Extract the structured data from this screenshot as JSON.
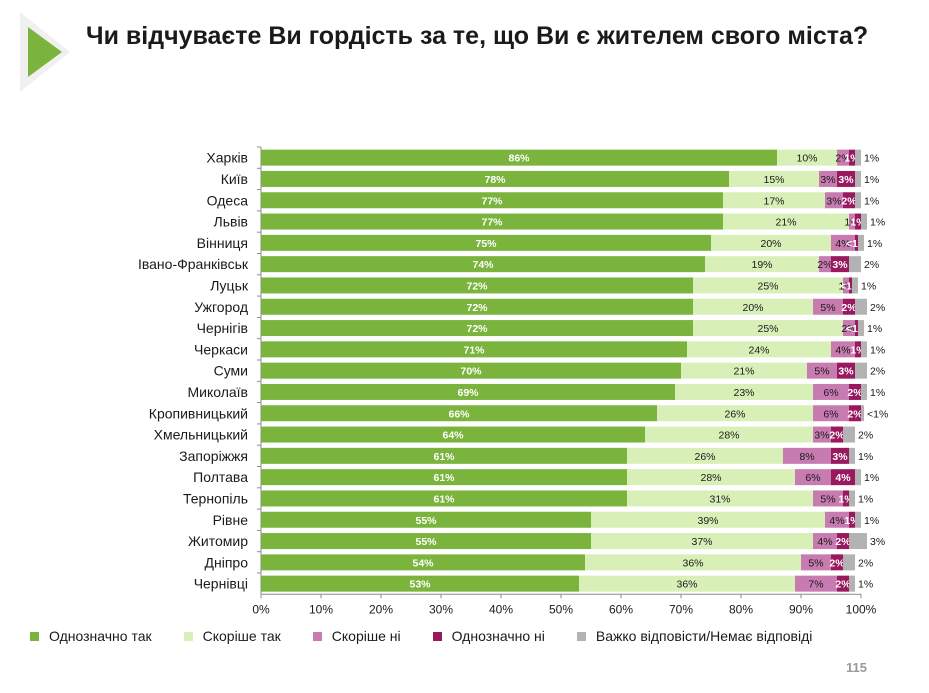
{
  "title": "Чи відчуваєте Ви гордість за те, що Ви є жителем свого міста?",
  "page_number": "115",
  "colors": {
    "definitely_yes": "#7ab43c",
    "rather_yes": "#d8efb8",
    "rather_no": "#c77bb0",
    "definitely_no": "#99195e",
    "hard_to_say": "#b3b3b3"
  },
  "legend": [
    {
      "label": "Однозначно так",
      "color": "#7ab43c"
    },
    {
      "label": "Скоріше так",
      "color": "#d8efb8"
    },
    {
      "label": "Скоріше ні",
      "color": "#c77bb0"
    },
    {
      "label": "Однозначно ні",
      "color": "#99195e"
    },
    {
      "label": "Важко відповісти/Немає відповіді",
      "color": "#b3b3b3"
    }
  ],
  "chart_data": {
    "type": "bar",
    "orientation": "horizontal",
    "stacked": true,
    "xlim": [
      0,
      100
    ],
    "x_ticks": [
      "0%",
      "10%",
      "20%",
      "30%",
      "40%",
      "50%",
      "60%",
      "70%",
      "80%",
      "90%",
      "100%"
    ],
    "grid": false,
    "legend_position": "bottom",
    "categories": [
      "Харків",
      "Київ",
      "Одеса",
      "Львів",
      "Вінниця",
      "Івано-Франківськ",
      "Луцьк",
      "Ужгород",
      "Чернігів",
      "Черкаси",
      "Суми",
      "Миколаїв",
      "Кропивницький",
      "Хмельницький",
      "Запоріжжя",
      "Полтава",
      "Тернопіль",
      "Рівне",
      "Житомир",
      "Дніпро",
      "Чернівці"
    ],
    "series": [
      {
        "name": "Однозначно так",
        "color": "#7ab43c",
        "values": [
          86,
          78,
          77,
          77,
          75,
          74,
          72,
          72,
          72,
          71,
          70,
          69,
          66,
          64,
          61,
          61,
          61,
          55,
          55,
          54,
          53
        ],
        "labels": [
          "86%",
          "78%",
          "77%",
          "77%",
          "75%",
          "74%",
          "72%",
          "72%",
          "72%",
          "71%",
          "70%",
          "69%",
          "66%",
          "64%",
          "61%",
          "61%",
          "61%",
          "55%",
          "55%",
          "54%",
          "53%"
        ]
      },
      {
        "name": "Скоріше так",
        "color": "#d8efb8",
        "values": [
          10,
          15,
          17,
          21,
          20,
          19,
          25,
          20,
          25,
          24,
          21,
          23,
          26,
          28,
          26,
          28,
          31,
          39,
          37,
          36,
          36
        ],
        "labels": [
          "10%",
          "15%",
          "17%",
          "21%",
          "20%",
          "19%",
          "25%",
          "20%",
          "25%",
          "24%",
          "21%",
          "23%",
          "26%",
          "28%",
          "26%",
          "28%",
          "31%",
          "39%",
          "37%",
          "36%",
          "36%"
        ]
      },
      {
        "name": "Скоріше ні",
        "color": "#c77bb0",
        "values": [
          2,
          3,
          3,
          1,
          4,
          2,
          1,
          5,
          2,
          4,
          5,
          6,
          6,
          3,
          8,
          6,
          5,
          4,
          4,
          5,
          7
        ],
        "labels": [
          "2%",
          "3%",
          "3%",
          "1%",
          "4%",
          "2%",
          "1%",
          "5%",
          "2%",
          "4%",
          "5%",
          "6%",
          "6%",
          "3%",
          "8%",
          "6%",
          "5%",
          "4%",
          "4%",
          "5%",
          "7%"
        ]
      },
      {
        "name": "Однозначно ні",
        "color": "#99195e",
        "values": [
          1,
          3,
          2,
          1,
          0.5,
          3,
          0.5,
          2,
          0.5,
          1,
          3,
          2,
          2,
          2,
          3,
          4,
          1,
          1,
          2,
          2,
          2
        ],
        "labels": [
          "1%",
          "3%",
          "2%",
          "1%",
          "<1%",
          "3%",
          "<1%",
          "2%",
          "<1%",
          "1%",
          "3%",
          "2%",
          "2%",
          "2%",
          "3%",
          "4%",
          "1%",
          "1%",
          "2%",
          "2%",
          "2%"
        ]
      },
      {
        "name": "Важко відповісти/Немає відповіді",
        "color": "#b3b3b3",
        "values": [
          1,
          1,
          1,
          1,
          1,
          2,
          1,
          2,
          1,
          1,
          2,
          1,
          0.5,
          2,
          1,
          1,
          1,
          1,
          3,
          2,
          1
        ],
        "labels": [
          "1%",
          "1%",
          "1%",
          "1%",
          "1%",
          "2%",
          "1%",
          "2%",
          "1%",
          "1%",
          "2%",
          "1%",
          "<1%",
          "2%",
          "1%",
          "1%",
          "1%",
          "1%",
          "3%",
          "2%",
          "1%"
        ]
      }
    ]
  }
}
